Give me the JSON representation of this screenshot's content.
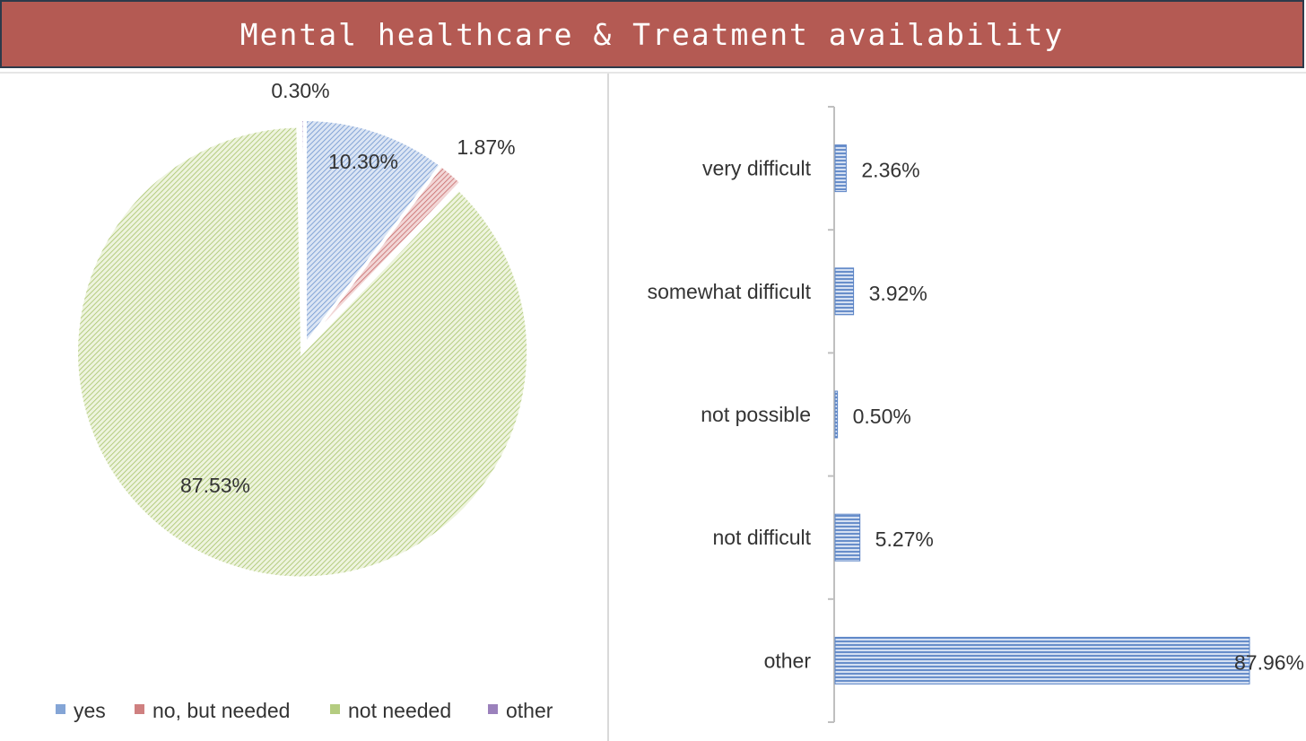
{
  "title": "Mental healthcare & Treatment availability",
  "colors": {
    "title_bg": "#b45a53",
    "yes": "#6f95cf",
    "no_but_needed": "#c76a6a",
    "not_needed": "#a7c36a",
    "other": "#8a6bb0",
    "bar": "#5b84c6"
  },
  "chart_data": [
    {
      "type": "pie",
      "title": "",
      "categories": [
        "yes",
        "no, but needed",
        "not needed",
        "other"
      ],
      "values": [
        10.3,
        1.87,
        87.53,
        0.3
      ],
      "data_labels": [
        "10.30%",
        "1.87%",
        "87.53%",
        "0.30%"
      ],
      "legend": [
        "yes",
        "no, but needed",
        "not needed",
        "other"
      ],
      "legend_placement": "bottom"
    },
    {
      "type": "bar",
      "orientation": "horizontal",
      "title": "",
      "categories": [
        "very difficult",
        "somewhat difficult",
        "not possible",
        "not difficult",
        "other"
      ],
      "values": [
        2.36,
        3.92,
        0.5,
        5.27,
        87.96
      ],
      "data_labels": [
        "2.36%",
        "3.92%",
        "0.50%",
        "5.27%",
        "87.96%"
      ],
      "xlim": [
        0,
        87.96
      ],
      "grid": false
    }
  ]
}
